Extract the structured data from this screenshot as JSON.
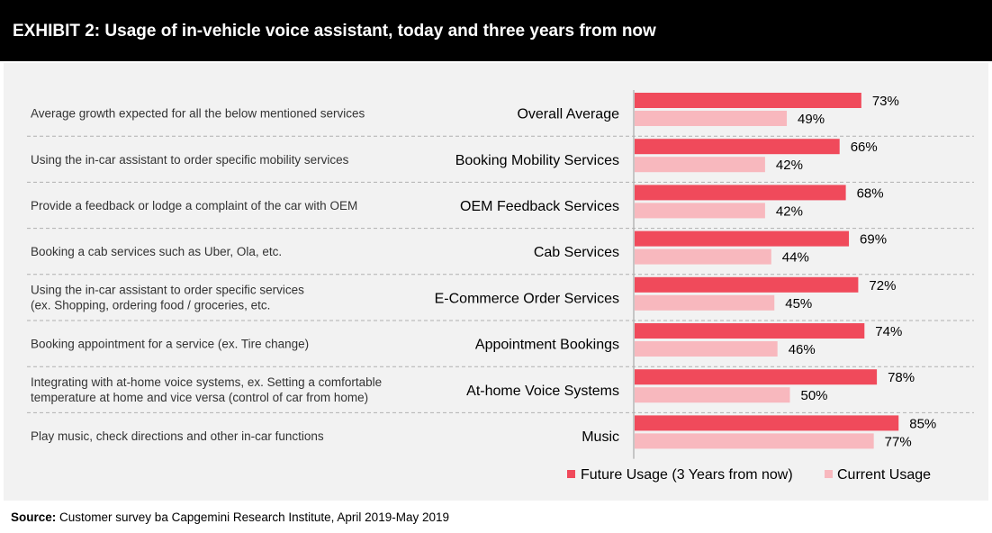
{
  "header": {
    "title": "EXHIBIT 2: Usage of in-vehicle voice assistant, today and three years from now"
  },
  "source": {
    "label": "Source:",
    "text": "Customer survey ba Capgemini Research Institute, April 2019-May 2019"
  },
  "colors": {
    "future": "#f04a5b",
    "current": "#f8b8be"
  },
  "chart_data": {
    "type": "bar",
    "orientation": "horizontal",
    "title": "",
    "xlabel": "",
    "ylabel": "",
    "xlim": [
      0,
      100
    ],
    "value_suffix": "%",
    "grid": false,
    "legend": "bottom-right",
    "categories": [
      "Overall Average",
      "Booking Mobility Services",
      "OEM Feedback Services",
      "Cab Services",
      "E-Commerce Order Services",
      "Appointment Bookings",
      "At-home Voice Systems",
      "Music"
    ],
    "descriptions": [
      [
        "Average growth expected for all the below mentioned services"
      ],
      [
        "Using the in-car assistant to order specific mobility services"
      ],
      [
        "Provide a feedback or lodge a complaint of the car with OEM"
      ],
      [
        "Booking a cab services such as Uber, Ola, etc."
      ],
      [
        "Using the in-car assistant to order specific services",
        "(ex. Shopping, ordering food / groceries, etc."
      ],
      [
        "Booking appointment for a service (ex. Tire change)"
      ],
      [
        "Integrating with at-home voice systems, ex. Setting a comfortable",
        "temperature at home and vice versa (control of car from home)"
      ],
      [
        "Play music, check directions and other in-car functions"
      ]
    ],
    "series": [
      {
        "name": "Future Usage (3 Years from now)",
        "values": [
          73,
          66,
          68,
          69,
          72,
          74,
          78,
          85
        ]
      },
      {
        "name": "Current Usage",
        "values": [
          49,
          42,
          42,
          44,
          45,
          46,
          50,
          77
        ]
      }
    ]
  }
}
